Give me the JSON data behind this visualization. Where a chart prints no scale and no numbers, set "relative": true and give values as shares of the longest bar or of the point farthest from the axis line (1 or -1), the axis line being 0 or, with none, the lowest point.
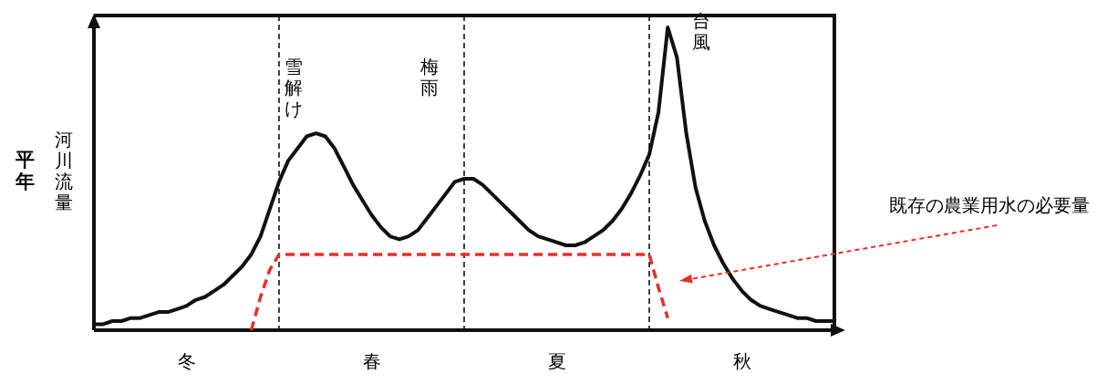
{
  "chart_data": {
    "type": "line",
    "title": "平年",
    "ylabel": "河川流量",
    "relative": true,
    "categories": [
      null,
      null,
      null,
      null,
      null,
      null,
      null,
      null,
      null,
      null,
      null,
      null,
      null,
      null,
      null,
      null,
      null,
      null,
      null,
      null,
      null,
      null,
      null,
      null,
      null,
      null,
      null,
      null,
      null,
      null,
      null,
      null,
      null,
      null,
      null,
      null,
      null,
      null,
      null,
      null,
      null,
      null,
      null,
      null,
      null,
      null,
      null,
      null,
      null,
      null,
      null,
      null,
      null,
      null,
      null,
      null,
      null,
      null,
      null,
      null,
      null,
      null,
      null,
      null,
      null,
      null,
      null,
      null,
      null,
      null,
      null,
      null,
      null,
      null,
      null,
      null,
      null,
      null,
      null,
      null,
      null
    ],
    "series": [
      {
        "color": "#111111",
        "line_style": "solid",
        "values": [
          0.02,
          0.02,
          0.03,
          0.03,
          0.04,
          0.04,
          0.05,
          0.06,
          0.06,
          0.07,
          0.08,
          0.1,
          0.11,
          0.13,
          0.15,
          0.18,
          0.21,
          0.25,
          0.31,
          0.4,
          0.49,
          0.56,
          0.6,
          0.64,
          0.65,
          0.64,
          0.6,
          0.54,
          0.48,
          0.43,
          0.38,
          0.34,
          0.31,
          0.3,
          0.31,
          0.33,
          0.37,
          0.41,
          0.45,
          0.49,
          0.5,
          0.5,
          0.48,
          0.45,
          0.42,
          0.39,
          0.36,
          0.33,
          0.31,
          0.3,
          0.29,
          0.28,
          0.28,
          0.29,
          0.31,
          0.33,
          0.36,
          0.4,
          0.45,
          0.51,
          0.58,
          0.72,
          1,
          0.9,
          0.65,
          0.47,
          0.36,
          0.28,
          0.22,
          0.17,
          0.13,
          0.1,
          0.08,
          0.07,
          0.06,
          0.05,
          0.04,
          0.04,
          0.03,
          0.03,
          0.03
        ]
      },
      {
        "color": "#e8302a",
        "line_style": "dashed",
        "values": [
          null,
          null,
          null,
          null,
          null,
          null,
          null,
          null,
          null,
          null,
          null,
          null,
          null,
          null,
          null,
          null,
          null,
          0,
          0.11,
          0.2,
          0.25,
          0.25,
          0.25,
          0.25,
          0.25,
          0.25,
          0.25,
          0.25,
          0.25,
          0.25,
          0.25,
          0.25,
          0.25,
          0.25,
          0.25,
          0.25,
          0.25,
          0.25,
          0.25,
          0.25,
          0.25,
          0.25,
          0.25,
          0.25,
          0.25,
          0.25,
          0.25,
          0.25,
          0.25,
          0.25,
          0.25,
          0.25,
          0.25,
          0.25,
          0.25,
          0.25,
          0.25,
          0.25,
          0.25,
          0.25,
          0.25,
          0.14,
          0.04,
          null,
          null,
          null,
          null,
          null,
          null,
          null,
          null,
          null,
          null,
          null,
          null,
          null,
          null,
          null,
          null,
          null,
          null
        ]
      }
    ],
    "annotations": [
      "冬",
      "春",
      "夏",
      "秋",
      "雪解け",
      "梅雨",
      "台風",
      "既存の農業用水の必要量"
    ],
    "grid": "x"
  }
}
